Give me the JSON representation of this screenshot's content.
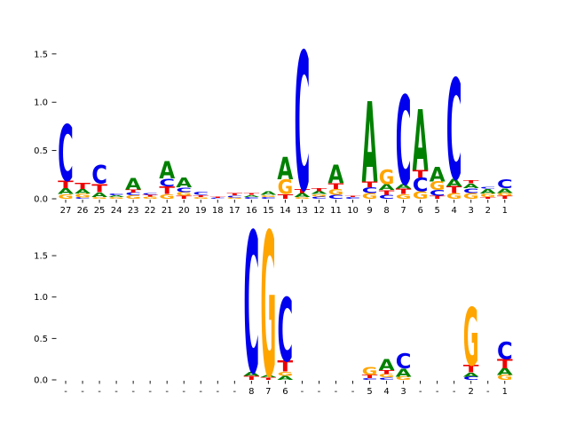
{
  "figure": {
    "background": "#ffffff",
    "tick_color": "#000000",
    "label_color": "#000000"
  },
  "colors": {
    "A": "#008000",
    "C": "#0000EE",
    "G": "#FFA500",
    "T": "#EE0000"
  },
  "chart_data": [
    {
      "type": "sequence-logo",
      "panel": "top",
      "title": "",
      "xlabel": "",
      "ylabel": "",
      "grid": false,
      "legend": null,
      "ylim": [
        0,
        1.62
      ],
      "yticks": [
        "0.0",
        "0.5",
        "1.0",
        "1.5"
      ],
      "ytick_values": [
        0.0,
        0.5,
        1.0,
        1.5
      ],
      "categories": [
        "27",
        "26",
        "25",
        "24",
        "23",
        "22",
        "21",
        "20",
        "19",
        "18",
        "17",
        "16",
        "15",
        "14",
        "13",
        "12",
        "11",
        "10",
        "9",
        "8",
        "7",
        "6",
        "5",
        "4",
        "3",
        "2",
        "1"
      ],
      "stacks": [
        [
          [
            "G",
            0.05
          ],
          [
            "A",
            0.06
          ],
          [
            "T",
            0.08
          ],
          [
            "C",
            0.58
          ]
        ],
        [
          [
            "C",
            0.015
          ],
          [
            "G",
            0.04
          ],
          [
            "A",
            0.045
          ],
          [
            "T",
            0.065
          ]
        ],
        [
          [
            "G",
            0.02
          ],
          [
            "A",
            0.05
          ],
          [
            "T",
            0.085
          ],
          [
            "C",
            0.19
          ]
        ],
        [
          [
            "G",
            0.02
          ],
          [
            "A",
            0.015
          ],
          [
            "C",
            0.015
          ]
        ],
        [
          [
            "G",
            0.035
          ],
          [
            "C",
            0.03
          ],
          [
            "T",
            0.03
          ],
          [
            "A",
            0.12
          ]
        ],
        [
          [
            "G",
            0.025
          ],
          [
            "T",
            0.015
          ],
          [
            "C",
            0.02
          ]
        ],
        [
          [
            "G",
            0.05
          ],
          [
            "T",
            0.08
          ],
          [
            "C",
            0.08
          ],
          [
            "A",
            0.18
          ]
        ],
        [
          [
            "T",
            0.03
          ],
          [
            "G",
            0.04
          ],
          [
            "C",
            0.05
          ],
          [
            "A",
            0.1
          ]
        ],
        [
          [
            "G",
            0.02
          ],
          [
            "T",
            0.02
          ],
          [
            "C",
            0.03
          ]
        ],
        [
          [
            "C",
            0.01
          ],
          [
            "T",
            0.01
          ]
        ],
        [
          [
            "G",
            0.015
          ],
          [
            "C",
            0.02
          ],
          [
            "T",
            0.025
          ]
        ],
        [
          [
            "C",
            0.02
          ],
          [
            "A",
            0.02
          ],
          [
            "T",
            0.02
          ]
        ],
        [
          [
            "C",
            0.02
          ],
          [
            "G",
            0.02
          ],
          [
            "A",
            0.035
          ]
        ],
        [
          [
            "T",
            0.05
          ],
          [
            "G",
            0.15
          ],
          [
            "A",
            0.23
          ]
        ],
        [
          [
            "G",
            0.02
          ],
          [
            "A",
            0.04
          ],
          [
            "T",
            0.04
          ],
          [
            "C",
            1.43
          ]
        ],
        [
          [
            "C",
            0.025
          ],
          [
            "G",
            0.025
          ],
          [
            "A",
            0.03
          ],
          [
            "T",
            0.03
          ]
        ],
        [
          [
            "C",
            0.04
          ],
          [
            "G",
            0.06
          ],
          [
            "T",
            0.06
          ],
          [
            "A",
            0.19
          ]
        ],
        [
          [
            "C",
            0.02
          ],
          [
            "T",
            0.01
          ]
        ],
        [
          [
            "G",
            0.06
          ],
          [
            "C",
            0.06
          ],
          [
            "T",
            0.06
          ],
          [
            "A",
            0.83
          ]
        ],
        [
          [
            "C",
            0.04
          ],
          [
            "T",
            0.05
          ],
          [
            "A",
            0.06
          ],
          [
            "G",
            0.15
          ]
        ],
        [
          [
            "G",
            0.05
          ],
          [
            "T",
            0.055
          ],
          [
            "A",
            0.05
          ],
          [
            "C",
            0.92
          ]
        ],
        [
          [
            "G",
            0.08
          ],
          [
            "C",
            0.14
          ],
          [
            "T",
            0.08
          ],
          [
            "A",
            0.63
          ]
        ],
        [
          [
            "T",
            0.03
          ],
          [
            "C",
            0.06
          ],
          [
            "G",
            0.09
          ],
          [
            "A",
            0.15
          ]
        ],
        [
          [
            "G",
            0.06
          ],
          [
            "T",
            0.07
          ],
          [
            "A",
            0.08
          ],
          [
            "C",
            1.04
          ]
        ],
        [
          [
            "G",
            0.06
          ],
          [
            "C",
            0.05
          ],
          [
            "A",
            0.05
          ],
          [
            "T",
            0.03
          ]
        ],
        [
          [
            "T",
            0.02
          ],
          [
            "G",
            0.035
          ],
          [
            "A",
            0.05
          ],
          [
            "C",
            0.015
          ]
        ],
        [
          [
            "T",
            0.03
          ],
          [
            "G",
            0.03
          ],
          [
            "A",
            0.05
          ],
          [
            "C",
            0.09
          ]
        ]
      ]
    },
    {
      "type": "sequence-logo",
      "panel": "bottom",
      "title": "",
      "xlabel": "",
      "ylabel": "",
      "grid": false,
      "legend": null,
      "ylim": [
        0,
        1.85
      ],
      "yticks": [
        "0.0",
        "0.5",
        "1.0",
        "1.5"
      ],
      "ytick_values": [
        0.0,
        0.5,
        1.0,
        1.5
      ],
      "categories": [
        "-",
        "-",
        "-",
        "-",
        "-",
        "-",
        "-",
        "-",
        "-",
        "-",
        "-",
        "8",
        "7",
        "6",
        "-",
        "-",
        "-",
        "-",
        "5",
        "4",
        "3",
        "-",
        "-",
        "-",
        "2",
        "-",
        "1"
      ],
      "stacks": [
        [],
        [],
        [],
        [],
        [],
        [],
        [],
        [],
        [],
        [],
        [],
        [
          [
            "T",
            0.05
          ],
          [
            "A",
            0.05
          ],
          [
            "C",
            1.7
          ]
        ],
        [
          [
            "T",
            0.03
          ],
          [
            "A",
            0.03
          ],
          [
            "G",
            1.74
          ]
        ],
        [
          [
            "A",
            0.05
          ],
          [
            "G",
            0.05
          ],
          [
            "T",
            0.13
          ],
          [
            "C",
            0.77
          ]
        ],
        [],
        [],
        [],
        [],
        [
          [
            "C",
            0.02
          ],
          [
            "T",
            0.04
          ],
          [
            "G",
            0.1
          ]
        ],
        [
          [
            "C",
            0.03
          ],
          [
            "G",
            0.04
          ],
          [
            "T",
            0.05
          ],
          [
            "A",
            0.13
          ]
        ],
        [
          [
            "G",
            0.04
          ],
          [
            "A",
            0.1
          ],
          [
            "C",
            0.18
          ]
        ],
        [],
        [],
        [],
        [
          [
            "C",
            0.04
          ],
          [
            "A",
            0.05
          ],
          [
            "T",
            0.09
          ],
          [
            "G",
            0.7
          ]
        ],
        [],
        [
          [
            "G",
            0.06
          ],
          [
            "A",
            0.08
          ],
          [
            "T",
            0.11
          ],
          [
            "C",
            0.21
          ]
        ]
      ]
    }
  ]
}
